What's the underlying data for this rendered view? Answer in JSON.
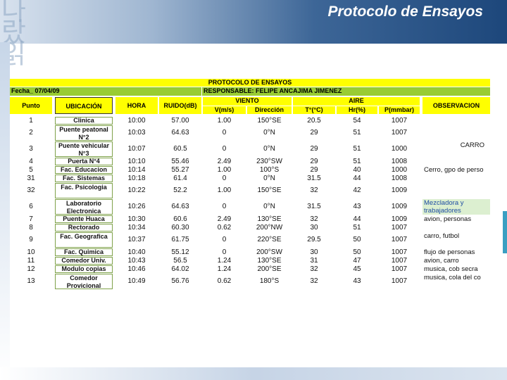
{
  "slide": {
    "title": "Protocolo de Ensayos",
    "background_glyphs": "나\n랐\n읽"
  },
  "sheet": {
    "title": "PROTOCOLO DE ENSAYOS",
    "fecha": "Fecha_ 07/04/09",
    "responsable": "RESPONSABLE: FELIPE ANCAJIMA JIMENEZ",
    "headers": {
      "punto": "Punto",
      "ubicacion": "UBICACIÓN",
      "hora": "HORA",
      "ruido": "RUIDO(dB)",
      "viento": "VIENTO",
      "v": "V(m/s)",
      "direccion": "Dirección",
      "aire": "AIRE",
      "t": "T°(°C)",
      "hr": "Hr(%)",
      "p": "P(mmbar)",
      "observacion": "OBSERVACION"
    },
    "rows": [
      {
        "punto": "1",
        "ubicacion": "Clinica",
        "hora": "10:00",
        "ruido": "57.00",
        "v": "1.00",
        "dir": "150°SE",
        "t": "20.5",
        "hr": "54",
        "p": "1007",
        "obs": ""
      },
      {
        "punto": "2",
        "ubicacion": "Puente peatonal N°2",
        "hora": "10:03",
        "ruido": "64.63",
        "v": "0",
        "dir": "0°N",
        "t": "29",
        "hr": "51",
        "p": "1007",
        "obs": ""
      },
      {
        "punto": "3",
        "ubicacion": "Puente vehicular N°3",
        "hora": "10:07",
        "ruido": "60.5",
        "v": "0",
        "dir": "0°N",
        "t": "29",
        "hr": "51",
        "p": "1000",
        "obs": "CARRO"
      },
      {
        "punto": "4",
        "ubicacion": "Puerta N°4",
        "hora": "10:10",
        "ruido": "55.46",
        "v": "2.49",
        "dir": "230°SW",
        "t": "29",
        "hr": "51",
        "p": "1008",
        "obs": ""
      },
      {
        "punto": "5",
        "ubicacion": "Fac. Educacion",
        "hora": "10:14",
        "ruido": "55.27",
        "v": "1.00",
        "dir": "100°S",
        "t": "29",
        "hr": "40",
        "p": "1000",
        "obs": "Cerro, gpo de perso"
      },
      {
        "punto": "31",
        "ubicacion": "Fac. Sistemas",
        "hora": "10:18",
        "ruido": "61.4",
        "v": "0",
        "dir": "0°N",
        "t": "31.5",
        "hr": "44",
        "p": "1008",
        "obs": ""
      },
      {
        "punto": "32",
        "ubicacion": "Fac. Psicologia",
        "hora": "10:22",
        "ruido": "52.2",
        "v": "1.00",
        "dir": "150°SE",
        "t": "32",
        "hr": "42",
        "p": "1009",
        "obs": ""
      },
      {
        "punto": "6",
        "ubicacion": "Laboratorio Electronica",
        "hora": "10:26",
        "ruido": "64.63",
        "v": "0",
        "dir": "0°N",
        "t": "31.5",
        "hr": "43",
        "p": "1009",
        "obs": "Mezcladora y trabajadores"
      },
      {
        "punto": "7",
        "ubicacion": "Puente Huaca",
        "hora": "10:30",
        "ruido": "60.6",
        "v": "2.49",
        "dir": "130°SE",
        "t": "32",
        "hr": "44",
        "p": "1009",
        "obs": "avion, personas"
      },
      {
        "punto": "8",
        "ubicacion": "Rectorado",
        "hora": "10:34",
        "ruido": "60.30",
        "v": "0.62",
        "dir": "200°NW",
        "t": "30",
        "hr": "51",
        "p": "1007",
        "obs": ""
      },
      {
        "punto": "9",
        "ubicacion": "Fac. Geografica",
        "hora": "10:37",
        "ruido": "61.75",
        "v": "0",
        "dir": "220°SE",
        "t": "29.5",
        "hr": "50",
        "p": "1007",
        "obs": "carro, futbol"
      },
      {
        "punto": "10",
        "ubicacion": "Fac. Quimica",
        "hora": "10:40",
        "ruido": "55.12",
        "v": "0",
        "dir": "200°SW",
        "t": "30",
        "hr": "50",
        "p": "1007",
        "obs": "flujo de personas"
      },
      {
        "punto": "11",
        "ubicacion": "Comedor Univ.",
        "hora": "10:43",
        "ruido": "56.5",
        "v": "1.24",
        "dir": "130°SE",
        "t": "31",
        "hr": "47",
        "p": "1007",
        "obs": "avion, carro"
      },
      {
        "punto": "12",
        "ubicacion": "Modulo copias",
        "hora": "10:46",
        "ruido": "64.02",
        "v": "1.24",
        "dir": "200°SE",
        "t": "32",
        "hr": "45",
        "p": "1007",
        "obs": "musica, cob secra"
      },
      {
        "punto": "13",
        "ubicacion": "Comedor Provicional",
        "hora": "10:49",
        "ruido": "56.76",
        "v": "0.62",
        "dir": "180°S",
        "t": "32",
        "hr": "43",
        "p": "1007",
        "obs": "musica, cola del co"
      }
    ]
  },
  "colors": {
    "header_yellow": "#ffff00",
    "responsable_green": "#99cc33",
    "observation_highlight": "#dcefd0",
    "observation_text_blue": "#1f4ea3"
  }
}
